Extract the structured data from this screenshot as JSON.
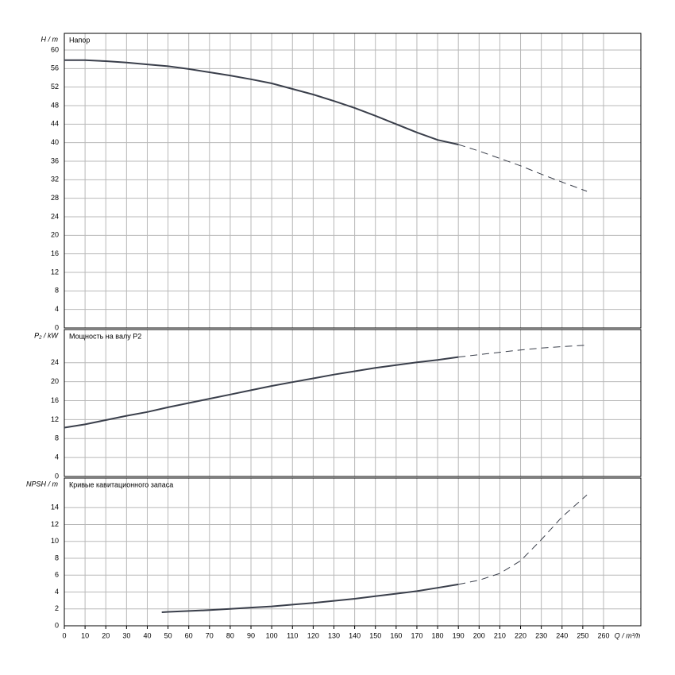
{
  "chart_data": [
    {
      "type": "line",
      "title": "Напор",
      "ylabel": "H / m",
      "xlim": [
        0,
        278
      ],
      "xticks": [
        0,
        10,
        20,
        30,
        40,
        50,
        60,
        70,
        80,
        90,
        100,
        110,
        120,
        130,
        140,
        150,
        160,
        170,
        180,
        190,
        200,
        210,
        220,
        230,
        240,
        250,
        260
      ],
      "ylim": [
        0,
        63.6
      ],
      "yticks": [
        0,
        4,
        8,
        12,
        16,
        20,
        24,
        28,
        32,
        36,
        40,
        44,
        48,
        52,
        56,
        60
      ],
      "grid": true,
      "series": [
        {
          "color": "#3a3f4b",
          "style": "solid",
          "x": [
            0,
            10,
            20,
            30,
            40,
            50,
            60,
            70,
            80,
            90,
            100,
            110,
            120,
            130,
            140,
            150,
            160,
            170,
            180,
            190
          ],
          "values": [
            57.8,
            57.8,
            57.6,
            57.3,
            56.9,
            56.5,
            55.9,
            55.2,
            54.5,
            53.7,
            52.8,
            51.6,
            50.4,
            49.0,
            47.5,
            45.8,
            44.0,
            42.2,
            40.6,
            39.6
          ]
        },
        {
          "color": "#3a3f4b",
          "style": "dashed",
          "x": [
            190,
            200,
            210,
            220,
            230,
            240,
            252
          ],
          "values": [
            39.6,
            38.2,
            36.6,
            35.0,
            33.2,
            31.5,
            29.5
          ]
        }
      ]
    },
    {
      "type": "line",
      "title": "Мощность на валу P2",
      "ylabel": "P₂ / kW",
      "xlim": [
        0,
        278
      ],
      "xticks": [
        0,
        10,
        20,
        30,
        40,
        50,
        60,
        70,
        80,
        90,
        100,
        110,
        120,
        130,
        140,
        150,
        160,
        170,
        180,
        190,
        200,
        210,
        220,
        230,
        240,
        250,
        260
      ],
      "ylim": [
        0,
        31
      ],
      "yticks": [
        0,
        4,
        8,
        12,
        16,
        20,
        24
      ],
      "grid": true,
      "series": [
        {
          "color": "#3a3f4b",
          "style": "solid",
          "x": [
            0,
            10,
            20,
            30,
            40,
            50,
            60,
            70,
            80,
            90,
            100,
            110,
            120,
            130,
            140,
            150,
            160,
            170,
            180,
            190
          ],
          "values": [
            10.3,
            11.0,
            11.9,
            12.8,
            13.6,
            14.6,
            15.5,
            16.4,
            17.3,
            18.2,
            19.1,
            19.9,
            20.7,
            21.5,
            22.2,
            22.9,
            23.5,
            24.1,
            24.6,
            25.2
          ]
        },
        {
          "color": "#3a3f4b",
          "style": "dashed",
          "x": [
            190,
            200,
            210,
            220,
            230,
            240,
            252
          ],
          "values": [
            25.2,
            25.7,
            26.2,
            26.7,
            27.1,
            27.4,
            27.7
          ]
        }
      ]
    },
    {
      "type": "line",
      "title": "Кривые кавитационного запаса",
      "ylabel": "NPSH / m",
      "xlabel": "Q / m³/h",
      "xlim": [
        0,
        278
      ],
      "xticks": [
        0,
        10,
        20,
        30,
        40,
        50,
        60,
        70,
        80,
        90,
        100,
        110,
        120,
        130,
        140,
        150,
        160,
        170,
        180,
        190,
        200,
        210,
        220,
        230,
        240,
        250,
        260
      ],
      "ylim": [
        0,
        17.5
      ],
      "yticks": [
        0,
        2,
        4,
        6,
        8,
        10,
        12,
        14
      ],
      "grid": true,
      "series": [
        {
          "color": "#3a3f4b",
          "style": "solid",
          "x": [
            47,
            50,
            60,
            70,
            80,
            90,
            100,
            110,
            120,
            130,
            140,
            150,
            160,
            170,
            180,
            190
          ],
          "values": [
            1.6,
            1.65,
            1.75,
            1.85,
            2.0,
            2.15,
            2.3,
            2.5,
            2.7,
            2.95,
            3.2,
            3.5,
            3.8,
            4.1,
            4.5,
            4.9
          ]
        },
        {
          "color": "#3a3f4b",
          "style": "dashed",
          "x": [
            190,
            200,
            210,
            220,
            230,
            240,
            252
          ],
          "values": [
            4.9,
            5.4,
            6.2,
            7.7,
            10.2,
            12.9,
            15.5
          ]
        }
      ]
    }
  ]
}
